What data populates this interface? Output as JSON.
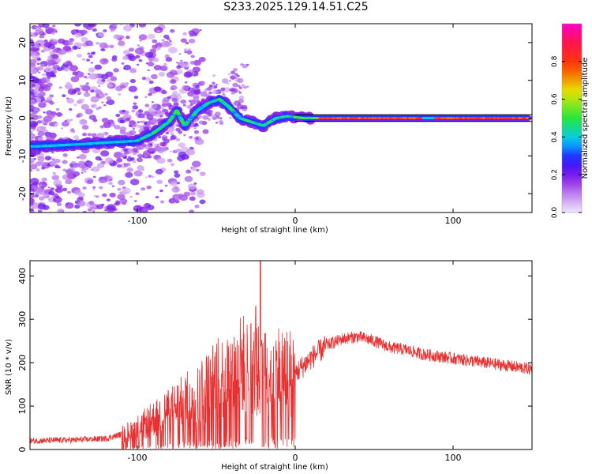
{
  "title": "S233.2025.129.14.51.C25",
  "chart_data": [
    {
      "type": "heatmap",
      "title": "",
      "xlabel": "Height of straight line (km)",
      "ylabel": "Frequency (Hz)",
      "xlim": [
        -168,
        150
      ],
      "ylim": [
        -25,
        25
      ],
      "x_ticks": [
        -100,
        0,
        100
      ],
      "y_ticks": [
        -20,
        -10,
        0,
        10,
        20
      ],
      "colorbar": {
        "label": "Normalized spectral amplitude",
        "range": [
          0,
          1
        ],
        "ticks": [
          0.0,
          0.2,
          0.4,
          0.6,
          0.8
        ],
        "tick_labels": [
          "0.0",
          "0.2",
          "0.4",
          "0.6",
          "0.8"
        ]
      },
      "ridge": {
        "description_points": [
          [
            -165,
            -7.5
          ],
          [
            -140,
            -7
          ],
          [
            -120,
            -6.5
          ],
          [
            -100,
            -6
          ],
          [
            -90,
            -4
          ],
          [
            -80,
            -1
          ],
          [
            -75,
            2
          ],
          [
            -70,
            -2
          ],
          [
            -62,
            2
          ],
          [
            -55,
            4
          ],
          [
            -48,
            5
          ],
          [
            -42,
            3
          ],
          [
            -35,
            0
          ],
          [
            -28,
            -1
          ],
          [
            -20,
            -2
          ],
          [
            -12,
            0
          ],
          [
            -5,
            0.5
          ],
          [
            5,
            0
          ],
          [
            20,
            0
          ],
          [
            60,
            0
          ],
          [
            100,
            0
          ],
          [
            148,
            0
          ]
        ]
      }
    },
    {
      "type": "line",
      "title": "",
      "xlabel": "Height of straight line (km)",
      "ylabel": "SNR (10 * v/v)",
      "xlim": [
        -168,
        150
      ],
      "ylim": [
        0,
        435
      ],
      "x_ticks": [
        -100,
        0,
        100
      ],
      "y_ticks": [
        0,
        100,
        200,
        300,
        400
      ],
      "line_color": "#e83030",
      "envelope": [
        [
          -168,
          20
        ],
        [
          -140,
          22
        ],
        [
          -120,
          25
        ],
        [
          -110,
          35
        ],
        [
          -100,
          50
        ],
        [
          -90,
          70
        ],
        [
          -80,
          90
        ],
        [
          -70,
          110
        ],
        [
          -60,
          130
        ],
        [
          -50,
          160
        ],
        [
          -40,
          175
        ],
        [
          -35,
          195
        ],
        [
          -30,
          200
        ],
        [
          -25,
          180
        ],
        [
          -20,
          175
        ],
        [
          -10,
          185
        ],
        [
          0,
          175
        ],
        [
          10,
          210
        ],
        [
          20,
          240
        ],
        [
          30,
          255
        ],
        [
          40,
          260
        ],
        [
          50,
          250
        ],
        [
          60,
          235
        ],
        [
          70,
          230
        ],
        [
          80,
          220
        ],
        [
          90,
          215
        ],
        [
          100,
          210
        ],
        [
          110,
          205
        ],
        [
          120,
          200
        ],
        [
          130,
          195
        ],
        [
          140,
          190
        ],
        [
          150,
          185
        ]
      ],
      "spikes": [
        [
          -22,
          435
        ],
        [
          -25,
          330
        ],
        [
          -28,
          290
        ]
      ]
    }
  ]
}
